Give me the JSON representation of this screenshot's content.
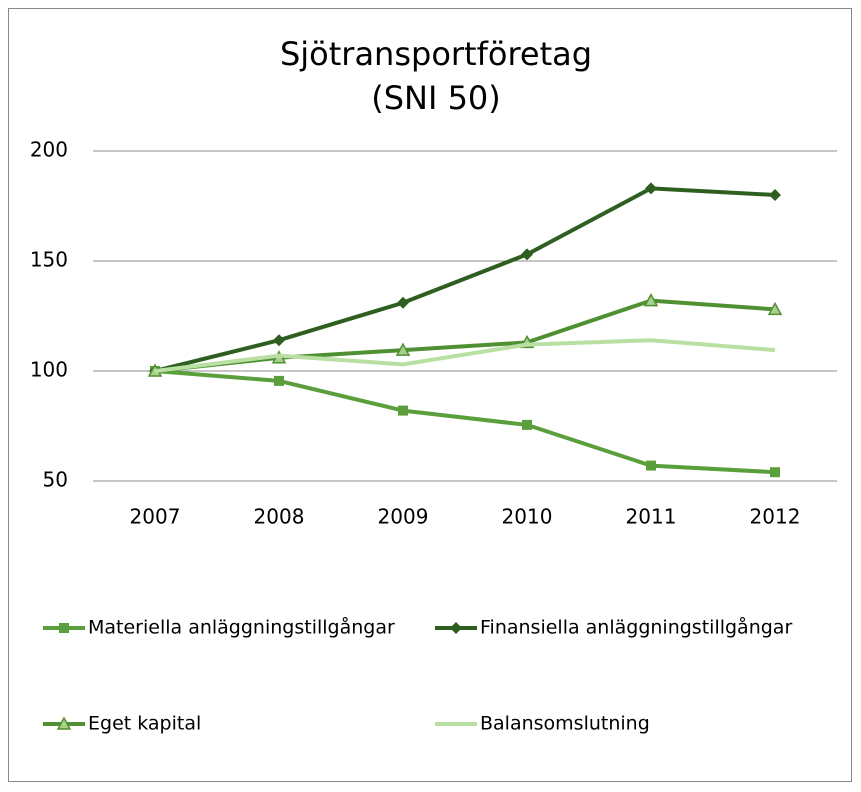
{
  "chart_data": {
    "type": "line",
    "title": "Sjötransportföretag",
    "subtitle": "(SNI 50)",
    "categories": [
      "2007",
      "2008",
      "2009",
      "2010",
      "2011",
      "2012"
    ],
    "series": [
      {
        "name": "Materiella anläggningstillgångar",
        "color": "#5b9f3d",
        "marker": "square",
        "values": [
          100,
          95.5,
          82,
          75.5,
          57,
          54
        ]
      },
      {
        "name": "Finansiella anläggningstillgångar",
        "color": "#2f5f20",
        "marker": "diamond",
        "values": [
          100,
          114,
          131,
          153,
          183,
          180
        ]
      },
      {
        "name": "Eget kapital",
        "color": "#4f9032",
        "marker": "triangle",
        "marker_fill": "#a9d18e",
        "values": [
          100,
          106,
          109.5,
          113,
          132,
          128
        ]
      },
      {
        "name": "Balansomslutning",
        "color": "#b9e0a2",
        "marker": "none",
        "values": [
          100,
          107,
          103,
          112,
          114,
          109.5
        ]
      }
    ],
    "ylim": [
      50,
      200
    ],
    "yticks": [
      50,
      100,
      150,
      200
    ],
    "grid": true,
    "legend": "bottom"
  }
}
